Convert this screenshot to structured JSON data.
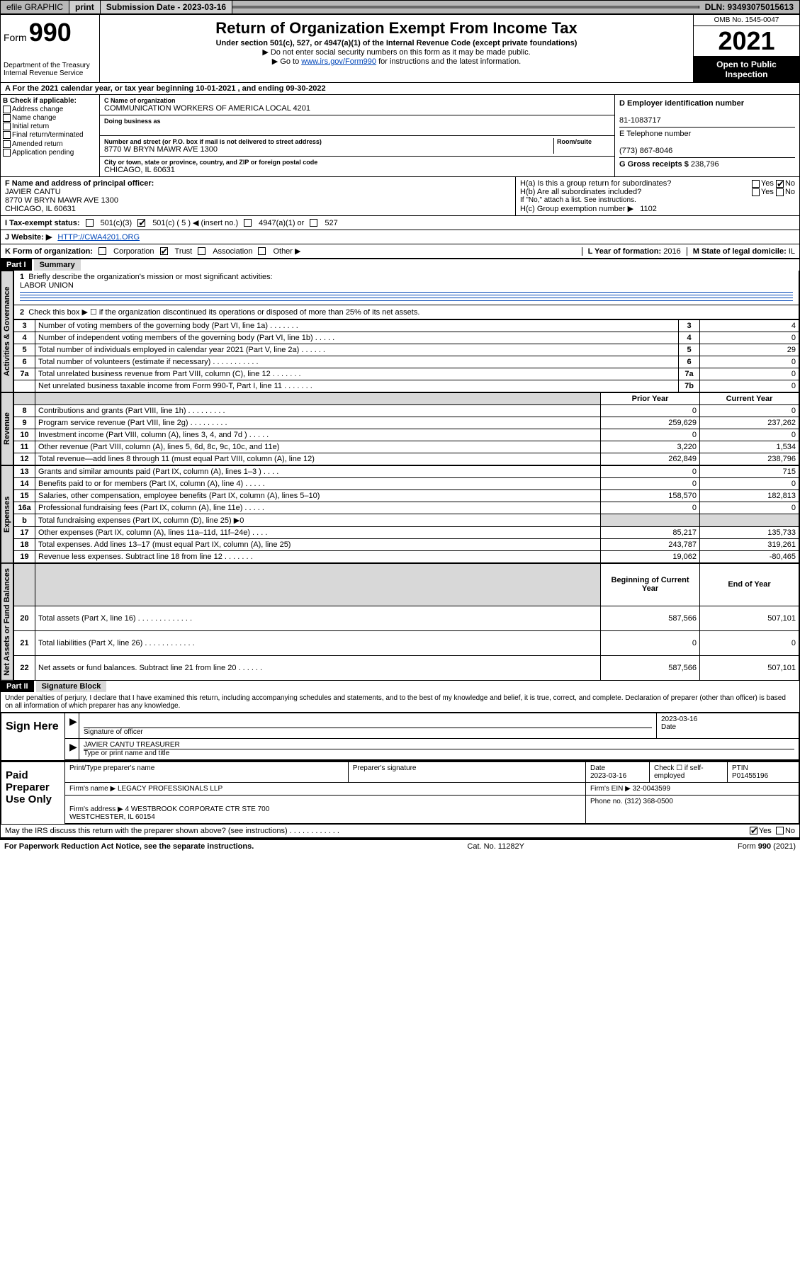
{
  "topbar": {
    "efile": "efile GRAPHIC",
    "print": "print",
    "sub_label": "Submission Date - 2023-03-16",
    "dln": "DLN: 93493075015613"
  },
  "header": {
    "form_prefix": "Form",
    "form_number": "990",
    "dept": "Department of the Treasury\nInternal Revenue Service",
    "title": "Return of Organization Exempt From Income Tax",
    "subtitle": "Under section 501(c), 527, or 4947(a)(1) of the Internal Revenue Code (except private foundations)",
    "note1": "▶ Do not enter social security numbers on this form as it may be made public.",
    "note2_pre": "▶ Go to ",
    "note2_link": "www.irs.gov/Form990",
    "note2_post": " for instructions and the latest information.",
    "omb": "OMB No. 1545-0047",
    "year": "2021",
    "open": "Open to Public Inspection"
  },
  "period": {
    "label_a": "A For the 2021 calendar year, or tax year beginning ",
    "begin": "10-01-2021",
    "mid": " , and ending ",
    "end": "09-30-2022"
  },
  "colB": {
    "header": "B Check if applicable:",
    "opts": [
      "Address change",
      "Name change",
      "Initial return",
      "Final return/terminated",
      "Amended return",
      "Application pending"
    ]
  },
  "colC": {
    "name_label": "C Name of organization",
    "name": "COMMUNICATION WORKERS OF AMERICA LOCAL 4201",
    "dba_label": "Doing business as",
    "addr_label": "Number and street (or P.O. box if mail is not delivered to street address)",
    "room_label": "Room/suite",
    "addr": "8770 W BRYN MAWR AVE 1300",
    "city_label": "City or town, state or province, country, and ZIP or foreign postal code",
    "city": "CHICAGO, IL  60631"
  },
  "colD": {
    "ein_label": "D Employer identification number",
    "ein": "81-1083717",
    "tel_label": "E Telephone number",
    "tel": "(773) 867-8046",
    "gross_label": "G Gross receipts $",
    "gross": "238,796"
  },
  "rowF": {
    "label": "F Name and address of principal officer:",
    "name": "JAVIER CANTU",
    "addr": "8770 W BRYN MAWR AVE 1300\nCHICAGO, IL  60631",
    "ha": "H(a)  Is this a group return for subordinates?",
    "hb": "H(b)  Are all subordinates included?",
    "hnote": "If \"No,\" attach a list. See instructions.",
    "hc_label": "H(c)  Group exemption number ▶",
    "hc_val": "1102",
    "yes": "Yes",
    "no": "No"
  },
  "rowI": {
    "label": "I   Tax-exempt status:",
    "o1": "501(c)(3)",
    "o2": "501(c) ( 5 ) ◀ (insert no.)",
    "o3": "4947(a)(1) or",
    "o4": "527"
  },
  "rowJ": {
    "label": "J   Website: ▶",
    "val": "HTTP://CWA4201.ORG"
  },
  "rowK": {
    "label": "K Form of organization:",
    "opts": [
      "Corporation",
      "Trust",
      "Association",
      "Other ▶"
    ],
    "checked_idx": 1,
    "l_label": "L Year of formation:",
    "l_val": "2016",
    "m_label": "M State of legal domicile:",
    "m_val": "IL"
  },
  "part1": {
    "header": "Part I",
    "title": "Summary",
    "q1": "Briefly describe the organization's mission or most significant activities:",
    "q1_val": "LABOR UNION",
    "q2": "Check this box ▶ ☐  if the organization discontinued its operations or disposed of more than 25% of its net assets."
  },
  "sections": {
    "gov": "Activities & Governance",
    "rev": "Revenue",
    "exp": "Expenses",
    "net": "Net Assets or Fund Balances"
  },
  "govRows": [
    {
      "n": "3",
      "label": "Number of voting members of the governing body (Part VI, line 1a)   .    .    .    .    .    .    .",
      "k": "3",
      "v": "4"
    },
    {
      "n": "4",
      "label": "Number of independent voting members of the governing body (Part VI, line 1b)   .    .    .    .    .",
      "k": "4",
      "v": "0"
    },
    {
      "n": "5",
      "label": "Total number of individuals employed in calendar year 2021 (Part V, line 2a)   .    .    .    .    .    .",
      "k": "5",
      "v": "29"
    },
    {
      "n": "6",
      "label": "Total number of volunteers (estimate if necessary)   .    .    .    .    .    .    .    .    .    .    .",
      "k": "6",
      "v": "0"
    },
    {
      "n": "7a",
      "label": "Total unrelated business revenue from Part VIII, column (C), line 12   .    .    .    .    .    .    .",
      "k": "7a",
      "v": "0"
    },
    {
      "n": "",
      "label": "Net unrelated business taxable income from Form 990-T, Part I, line 11   .    .    .    .    .    .    .",
      "k": "7b",
      "v": "0"
    }
  ],
  "colHeaders": {
    "prior": "Prior Year",
    "current": "Current Year",
    "boy": "Beginning of Current Year",
    "eoy": "End of Year"
  },
  "revRows": [
    {
      "n": "8",
      "label": "Contributions and grants (Part VIII, line 1h)   .    .    .    .    .    .    .    .    .",
      "p": "0",
      "c": "0"
    },
    {
      "n": "9",
      "label": "Program service revenue (Part VIII, line 2g)   .    .    .    .    .    .    .    .    .",
      "p": "259,629",
      "c": "237,262"
    },
    {
      "n": "10",
      "label": "Investment income (Part VIII, column (A), lines 3, 4, and 7d )   .    .    .    .    .",
      "p": "0",
      "c": "0"
    },
    {
      "n": "11",
      "label": "Other revenue (Part VIII, column (A), lines 5, 6d, 8c, 9c, 10c, and 11e)",
      "p": "3,220",
      "c": "1,534"
    },
    {
      "n": "12",
      "label": "Total revenue—add lines 8 through 11 (must equal Part VIII, column (A), line 12)",
      "p": "262,849",
      "c": "238,796"
    }
  ],
  "expRows": [
    {
      "n": "13",
      "label": "Grants and similar amounts paid (Part IX, column (A), lines 1–3 )   .    .    .    .",
      "p": "0",
      "c": "715"
    },
    {
      "n": "14",
      "label": "Benefits paid to or for members (Part IX, column (A), line 4)   .    .    .    .    .",
      "p": "0",
      "c": "0"
    },
    {
      "n": "15",
      "label": "Salaries, other compensation, employee benefits (Part IX, column (A), lines 5–10)",
      "p": "158,570",
      "c": "182,813"
    },
    {
      "n": "16a",
      "label": "Professional fundraising fees (Part IX, column (A), line 11e)   .    .    .    .    .",
      "p": "0",
      "c": "0"
    },
    {
      "n": "b",
      "label": "Total fundraising expenses (Part IX, column (D), line 25) ▶0",
      "p": "",
      "c": "",
      "shade": true
    },
    {
      "n": "17",
      "label": "Other expenses (Part IX, column (A), lines 11a–11d, 11f–24e)   .    .    .    .",
      "p": "85,217",
      "c": "135,733"
    },
    {
      "n": "18",
      "label": "Total expenses. Add lines 13–17 (must equal Part IX, column (A), line 25)",
      "p": "243,787",
      "c": "319,261"
    },
    {
      "n": "19",
      "label": "Revenue less expenses. Subtract line 18 from line 12   .    .    .    .    .    .    .",
      "p": "19,062",
      "c": "-80,465"
    }
  ],
  "netRows": [
    {
      "n": "20",
      "label": "Total assets (Part X, line 16)   .    .    .    .    .    .    .    .    .    .    .    .    .",
      "p": "587,566",
      "c": "507,101"
    },
    {
      "n": "21",
      "label": "Total liabilities (Part X, line 26)   .    .    .    .    .    .    .    .    .    .    .    .",
      "p": "0",
      "c": "0"
    },
    {
      "n": "22",
      "label": "Net assets or fund balances. Subtract line 21 from line 20   .    .    .    .    .    .",
      "p": "587,566",
      "c": "507,101"
    }
  ],
  "part2": {
    "header": "Part II",
    "title": "Signature Block",
    "decl": "Under penalties of perjury, I declare that I have examined this return, including accompanying schedules and statements, and to the best of my knowledge and belief, it is true, correct, and complete. Declaration of preparer (other than officer) is based on all information of which preparer has any knowledge."
  },
  "sign": {
    "here": "Sign Here",
    "sig_of_officer": "Signature of officer",
    "date_label": "Date",
    "date": "2023-03-16",
    "officer": "JAVIER CANTU  TREASURER",
    "type_label": "Type or print name and title"
  },
  "paid": {
    "label": "Paid Preparer Use Only",
    "h1": "Print/Type preparer's name",
    "h2": "Preparer's signature",
    "h3": "Date",
    "date": "2023-03-16",
    "h4": "Check ☐ if self-employed",
    "h5": "PTIN",
    "ptin": "P01455196",
    "firm_label": "Firm's name    ▶",
    "firm": "LEGACY PROFESSIONALS LLP",
    "ein_label": "Firm's EIN ▶",
    "ein": "32-0043599",
    "addr_label": "Firm's address ▶",
    "addr": "4 WESTBROOK CORPORATE CTR STE 700\nWESTCHESTER, IL  60154",
    "phone_label": "Phone no.",
    "phone": "(312) 368-0500"
  },
  "discuss": {
    "q": "May the IRS discuss this return with the preparer shown above? (see instructions)   .    .    .    .    .    .    .    .    .    .    .    .",
    "yes": "Yes",
    "no": "No"
  },
  "footer": {
    "left": "For Paperwork Reduction Act Notice, see the separate instructions.",
    "mid": "Cat. No. 11282Y",
    "right": "Form 990 (2021)"
  }
}
